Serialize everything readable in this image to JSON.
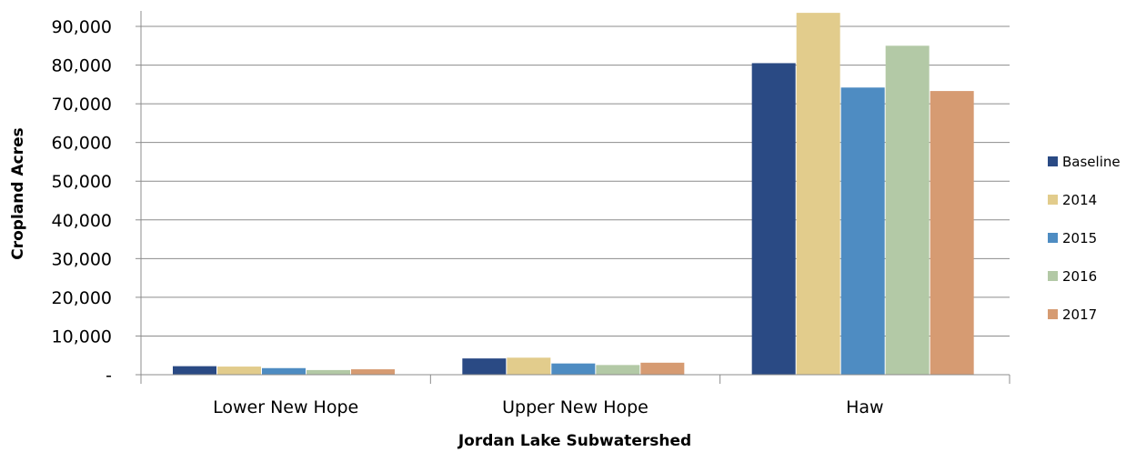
{
  "chart_data": {
    "type": "bar",
    "title": "",
    "xlabel": "Jordan Lake Subwatershed",
    "ylabel": "Cropland Acres",
    "categories": [
      "Lower New Hope",
      "Upper New Hope",
      "Haw"
    ],
    "series": [
      {
        "name": "Baseline",
        "color": "#2a4a84",
        "values": [
          2200,
          4200,
          80500
        ]
      },
      {
        "name": "2014",
        "color": "#e2cc8c",
        "values": [
          2100,
          4400,
          93500
        ]
      },
      {
        "name": "2015",
        "color": "#4e8cc2",
        "values": [
          1700,
          2900,
          74200
        ]
      },
      {
        "name": "2016",
        "color": "#b3c9a6",
        "values": [
          1200,
          2500,
          85000
        ]
      },
      {
        "name": "2017",
        "color": "#d69b72",
        "values": [
          1400,
          3100,
          73300
        ]
      }
    ],
    "ylim": [
      0,
      94000
    ],
    "yticks": [
      0,
      10000,
      20000,
      30000,
      40000,
      50000,
      60000,
      70000,
      80000,
      90000
    ],
    "ytick_labels": [
      "-",
      "10,000",
      "20,000",
      "30,000",
      "40,000",
      "50,000",
      "60,000",
      "70,000",
      "80,000",
      "90,000"
    ],
    "grid": true,
    "legend_position": "right"
  }
}
